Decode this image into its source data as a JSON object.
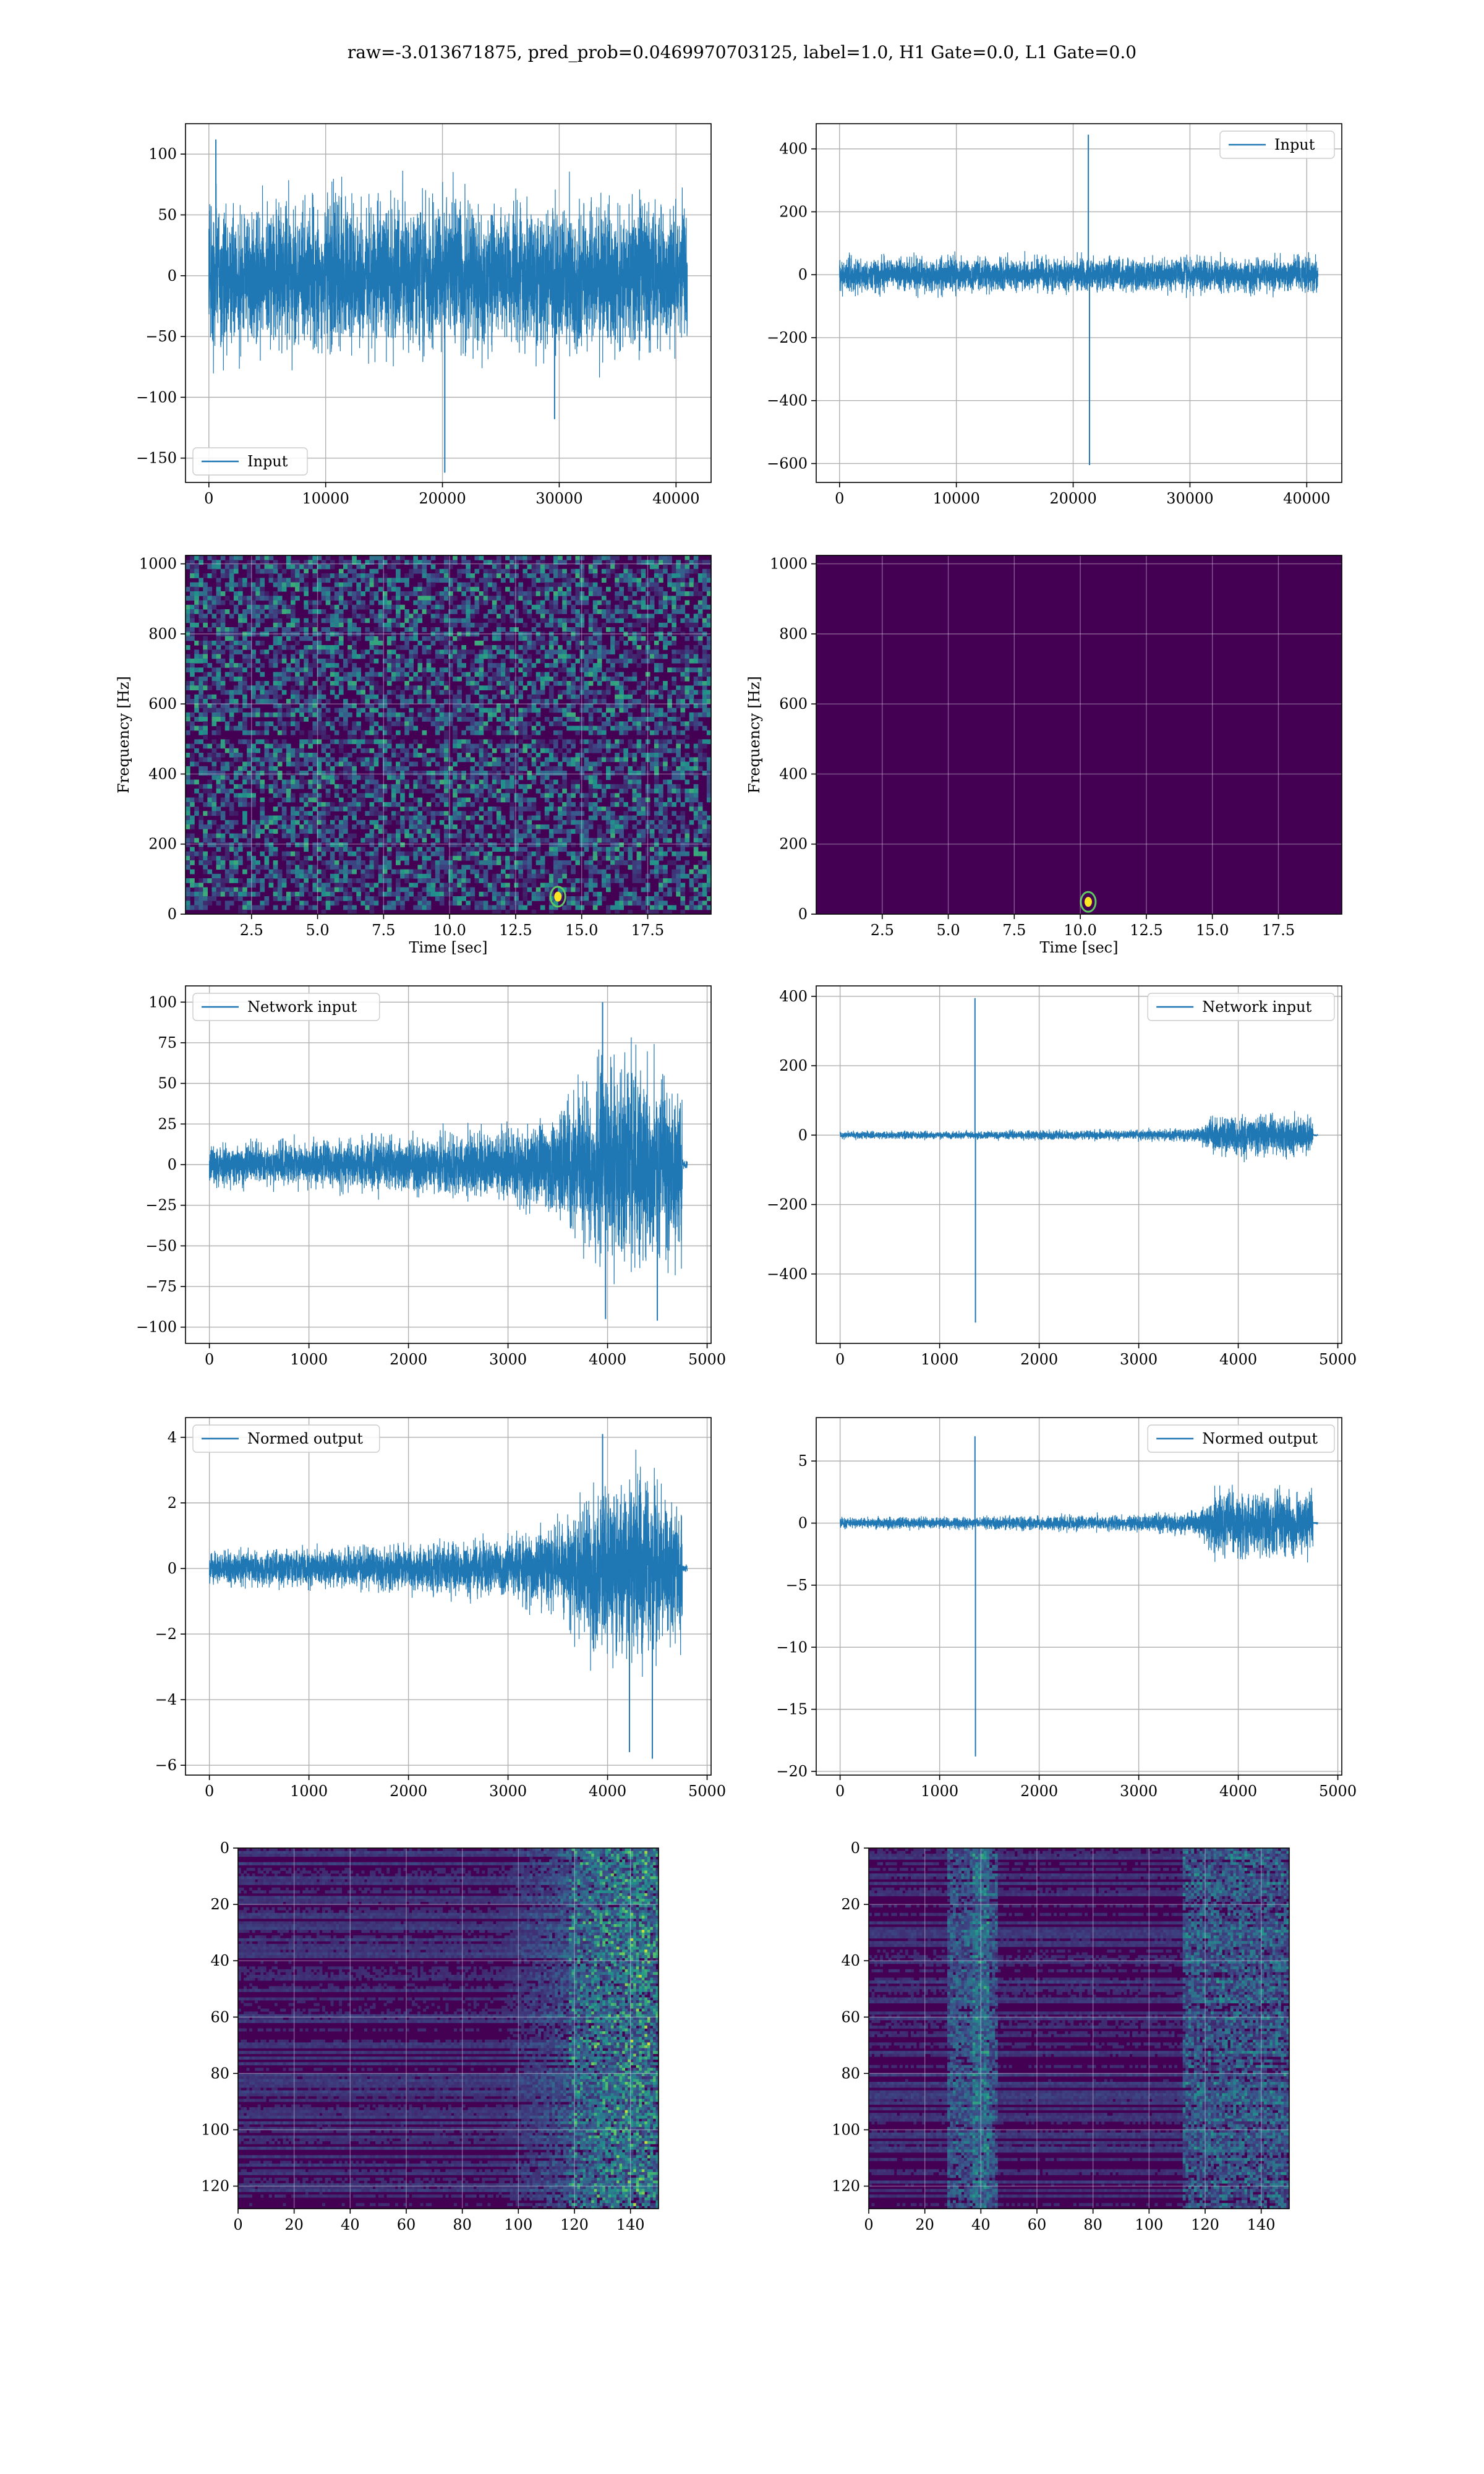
{
  "figure": {
    "title": "raw=-3.013671875, pred_prob=0.0469970703125, label=1.0, H1 Gate=0.0, L1 Gate=0.0"
  },
  "colors": {
    "line": "#1f77b4",
    "grid": "#b0b0b0",
    "viridis_dark": "#440154"
  },
  "chart_data": [
    {
      "id": "h1-input",
      "type": "line",
      "title": "",
      "xlabel": "",
      "ylabel": "",
      "legend": "bottom-left",
      "grid": true,
      "xlim": [
        -2000,
        43000
      ],
      "ylim": [
        -170,
        125
      ],
      "xticks": [
        0,
        10000,
        20000,
        30000,
        40000
      ],
      "xtick_labels": [
        "0",
        "10000",
        "20000",
        "30000",
        "40000"
      ],
      "yticks": [
        100,
        50,
        0,
        -50,
        -100,
        -150
      ],
      "ytick_labels": [
        "100",
        "50",
        "0",
        "−50",
        "−100",
        "−150"
      ],
      "series": [
        {
          "name": "Input",
          "n_points": 40960,
          "x_range": [
            0,
            40960
          ],
          "amplitude": 65,
          "spikes": [
            {
              "x": 20200,
              "y": -162
            },
            {
              "x": 600,
              "y": 112
            },
            {
              "x": 29600,
              "y": -118
            }
          ]
        }
      ]
    },
    {
      "id": "l1-input",
      "type": "line",
      "title": "",
      "xlabel": "",
      "ylabel": "",
      "legend": "top-right",
      "grid": true,
      "xlim": [
        -2000,
        43000
      ],
      "ylim": [
        -660,
        480
      ],
      "xticks": [
        0,
        10000,
        20000,
        30000,
        40000
      ],
      "xtick_labels": [
        "0",
        "10000",
        "20000",
        "30000",
        "40000"
      ],
      "yticks": [
        400,
        200,
        0,
        -200,
        -400,
        -600
      ],
      "ytick_labels": [
        "400",
        "200",
        "0",
        "−200",
        "−400",
        "−600"
      ],
      "series": [
        {
          "name": "Input",
          "n_points": 40960,
          "x_range": [
            0,
            40960
          ],
          "amplitude": 60,
          "spikes": [
            {
              "x": 21300,
              "y": 445
            },
            {
              "x": 21400,
              "y": -605
            }
          ]
        }
      ]
    },
    {
      "id": "h1-spectrogram",
      "type": "heatmap",
      "title": "",
      "xlabel": "Time [sec]",
      "ylabel": "Frequency [Hz]",
      "grid": true,
      "colormap": "viridis",
      "xlim": [
        0,
        19.9
      ],
      "ylim": [
        0,
        1024
      ],
      "xticks": [
        2.5,
        5.0,
        7.5,
        10.0,
        12.5,
        15.0,
        17.5
      ],
      "xtick_labels": [
        "2.5",
        "5.0",
        "7.5",
        "10.0",
        "12.5",
        "15.0",
        "17.5"
      ],
      "yticks": [
        0,
        200,
        400,
        600,
        800,
        1000
      ],
      "ytick_labels": [
        "0",
        "200",
        "400",
        "600",
        "800",
        "1000"
      ],
      "hotspots": [
        {
          "t": 14.1,
          "f": 50
        }
      ]
    },
    {
      "id": "l1-spectrogram",
      "type": "heatmap",
      "title": "",
      "xlabel": "Time [sec]",
      "ylabel": "Frequency [Hz]",
      "grid": true,
      "colormap": "viridis",
      "xlim": [
        0,
        19.9
      ],
      "ylim": [
        0,
        1024
      ],
      "xticks": [
        2.5,
        5.0,
        7.5,
        10.0,
        12.5,
        15.0,
        17.5
      ],
      "xtick_labels": [
        "2.5",
        "5.0",
        "7.5",
        "10.0",
        "12.5",
        "15.0",
        "17.5"
      ],
      "yticks": [
        0,
        200,
        400,
        600,
        800,
        1000
      ],
      "ytick_labels": [
        "0",
        "200",
        "400",
        "600",
        "800",
        "1000"
      ],
      "hotspots": [
        {
          "t": 10.3,
          "f": 35
        }
      ]
    },
    {
      "id": "h1-network-input",
      "type": "line",
      "title": "",
      "xlabel": "",
      "ylabel": "",
      "legend": "top-left",
      "grid": true,
      "xlim": [
        -240,
        5040
      ],
      "ylim": [
        -110,
        110
      ],
      "xticks": [
        0,
        1000,
        2000,
        3000,
        4000,
        5000
      ],
      "xtick_labels": [
        "0",
        "1000",
        "2000",
        "3000",
        "4000",
        "5000"
      ],
      "yticks": [
        100,
        75,
        50,
        25,
        0,
        -25,
        -50,
        -75,
        -100
      ],
      "ytick_labels": [
        "100",
        "75",
        "50",
        "25",
        "0",
        "−25",
        "−50",
        "−75",
        "−100"
      ],
      "series": [
        {
          "name": "Network input",
          "n_points": 4800,
          "x_range": [
            0,
            4800
          ],
          "envelope": [
            [
              0,
              14
            ],
            [
              1000,
              15
            ],
            [
              2000,
              18
            ],
            [
              3000,
              24
            ],
            [
              3500,
              35
            ],
            [
              3900,
              65
            ],
            [
              4300,
              75
            ],
            [
              4600,
              60
            ],
            [
              4750,
              60
            ]
          ],
          "tail": [
            4750,
            4800
          ],
          "spikes": [
            {
              "x": 3950,
              "y": 100
            },
            {
              "x": 3980,
              "y": -95
            },
            {
              "x": 4500,
              "y": -96
            }
          ]
        }
      ]
    },
    {
      "id": "l1-network-input",
      "type": "line",
      "title": "",
      "xlabel": "",
      "ylabel": "",
      "legend": "top-right",
      "grid": true,
      "xlim": [
        -240,
        5040
      ],
      "ylim": [
        -600,
        430
      ],
      "xticks": [
        0,
        1000,
        2000,
        3000,
        4000,
        5000
      ],
      "xtick_labels": [
        "0",
        "1000",
        "2000",
        "3000",
        "4000",
        "5000"
      ],
      "yticks": [
        400,
        200,
        0,
        -200,
        -400
      ],
      "ytick_labels": [
        "400",
        "200",
        "0",
        "−200",
        "−400"
      ],
      "series": [
        {
          "name": "Network input",
          "n_points": 4800,
          "x_range": [
            0,
            4800
          ],
          "envelope": [
            [
              0,
              12
            ],
            [
              1000,
              12
            ],
            [
              2000,
              14
            ],
            [
              3000,
              16
            ],
            [
              3600,
              22
            ],
            [
              3750,
              60
            ],
            [
              4400,
              65
            ],
            [
              4750,
              55
            ]
          ],
          "tail": [
            4750,
            4800
          ],
          "spikes": [
            {
              "x": 1355,
              "y": 395
            },
            {
              "x": 1360,
              "y": -540
            }
          ]
        }
      ]
    },
    {
      "id": "h1-normed-output",
      "type": "line",
      "title": "",
      "xlabel": "",
      "ylabel": "",
      "legend": "top-left",
      "grid": true,
      "xlim": [
        -240,
        5040
      ],
      "ylim": [
        -6.3,
        4.6
      ],
      "xticks": [
        0,
        1000,
        2000,
        3000,
        4000,
        5000
      ],
      "xtick_labels": [
        "0",
        "1000",
        "2000",
        "3000",
        "4000",
        "5000"
      ],
      "yticks": [
        4,
        2,
        0,
        -2,
        -4,
        -6
      ],
      "ytick_labels": [
        "4",
        "2",
        "0",
        "−2",
        "−4",
        "−6"
      ],
      "series": [
        {
          "name": "Normed output",
          "n_points": 4800,
          "x_range": [
            0,
            4800
          ],
          "envelope": [
            [
              0,
              0.55
            ],
            [
              1000,
              0.6
            ],
            [
              2000,
              0.75
            ],
            [
              3000,
              1.0
            ],
            [
              3500,
              1.5
            ],
            [
              3900,
              2.8
            ],
            [
              4300,
              3.0
            ],
            [
              4600,
              2.4
            ],
            [
              4750,
              2.4
            ]
          ],
          "tail": [
            4750,
            4800
          ],
          "spikes": [
            {
              "x": 3950,
              "y": 4.1
            },
            {
              "x": 4450,
              "y": -5.8
            },
            {
              "x": 4220,
              "y": -5.6
            }
          ]
        }
      ]
    },
    {
      "id": "l1-normed-output",
      "type": "line",
      "title": "",
      "xlabel": "",
      "ylabel": "",
      "legend": "top-right",
      "grid": true,
      "xlim": [
        -240,
        5040
      ],
      "ylim": [
        -20.3,
        8.5
      ],
      "xticks": [
        0,
        1000,
        2000,
        3000,
        4000,
        5000
      ],
      "xtick_labels": [
        "0",
        "1000",
        "2000",
        "3000",
        "4000",
        "5000"
      ],
      "yticks": [
        5,
        0,
        -5,
        -10,
        -15,
        -20
      ],
      "ytick_labels": [
        "5",
        "0",
        "−5",
        "−10",
        "−15",
        "−20"
      ],
      "series": [
        {
          "name": "Normed output",
          "n_points": 4800,
          "x_range": [
            0,
            4800
          ],
          "envelope": [
            [
              0,
              0.5
            ],
            [
              1000,
              0.5
            ],
            [
              2000,
              0.6
            ],
            [
              3000,
              0.7
            ],
            [
              3600,
              1.0
            ],
            [
              3750,
              2.5
            ],
            [
              4400,
              3.0
            ],
            [
              4750,
              2.5
            ]
          ],
          "tail": [
            4750,
            4800
          ],
          "spikes": [
            {
              "x": 1355,
              "y": 7.0
            },
            {
              "x": 1360,
              "y": -18.8
            }
          ]
        }
      ]
    },
    {
      "id": "h1-feature-map",
      "type": "heatmap",
      "title": "",
      "xlabel": "",
      "ylabel": "",
      "grid": true,
      "colormap": "viridis",
      "xlim": [
        0,
        150
      ],
      "ylim": [
        128,
        0
      ],
      "xticks": [
        0,
        20,
        40,
        60,
        80,
        100,
        120,
        140
      ],
      "xtick_labels": [
        "0",
        "20",
        "40",
        "60",
        "80",
        "100",
        "120",
        "140"
      ],
      "yticks": [
        0,
        20,
        40,
        60,
        80,
        100,
        120
      ],
      "ytick_labels": [
        "0",
        "20",
        "40",
        "60",
        "80",
        "100",
        "120"
      ],
      "activity": "high in columns ~95–150 for most rows, strongest near columns 120–145"
    },
    {
      "id": "l1-feature-map",
      "type": "heatmap",
      "title": "",
      "xlabel": "",
      "ylabel": "",
      "grid": true,
      "colormap": "viridis",
      "xlim": [
        0,
        150
      ],
      "ylim": [
        128,
        0
      ],
      "xticks": [
        0,
        20,
        40,
        60,
        80,
        100,
        120,
        140
      ],
      "xtick_labels": [
        "0",
        "20",
        "40",
        "60",
        "80",
        "100",
        "120",
        "140"
      ],
      "yticks": [
        0,
        20,
        40,
        60,
        80,
        100,
        120
      ],
      "ytick_labels": [
        "0",
        "20",
        "40",
        "60",
        "80",
        "100",
        "120"
      ],
      "activity": "band near columns 30–45 for all rows, plus right-hand band near columns 115–150"
    }
  ]
}
